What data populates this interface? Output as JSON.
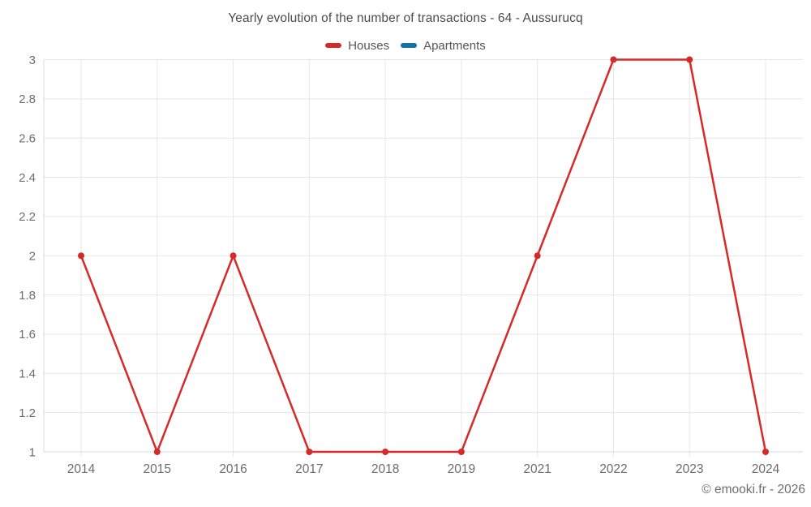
{
  "header": {
    "title": "Yearly evolution of the number of transactions - 64 - Aussurucq"
  },
  "footer": {
    "credit": "© emooki.fr - 2026"
  },
  "chart_data": {
    "type": "line",
    "title": "Yearly evolution of the number of transactions - 64 - Aussurucq",
    "categories": [
      "2014",
      "2015",
      "2016",
      "2017",
      "2018",
      "2019",
      "2021",
      "2022",
      "2023",
      "2024"
    ],
    "series": [
      {
        "name": "Houses",
        "color": "#d62a28",
        "values": [
          2,
          1,
          2,
          1,
          1,
          1,
          2,
          3,
          3,
          1
        ]
      },
      {
        "name": "Apartments",
        "color": "#1173a8",
        "values": []
      }
    ],
    "xlabel": "",
    "ylabel": "",
    "ylim": [
      1,
      3
    ],
    "ytick_step": 0.2,
    "yticks": [
      3,
      2.8,
      2.6,
      2.4,
      2.2,
      2,
      1.8,
      1.6,
      1.4,
      1.2,
      1
    ],
    "grid": true,
    "legend_position": "top",
    "grid_color": "#e6e6e6",
    "axis_color": "#d9d9d9",
    "tick_label_color": "#6d6d6d"
  }
}
